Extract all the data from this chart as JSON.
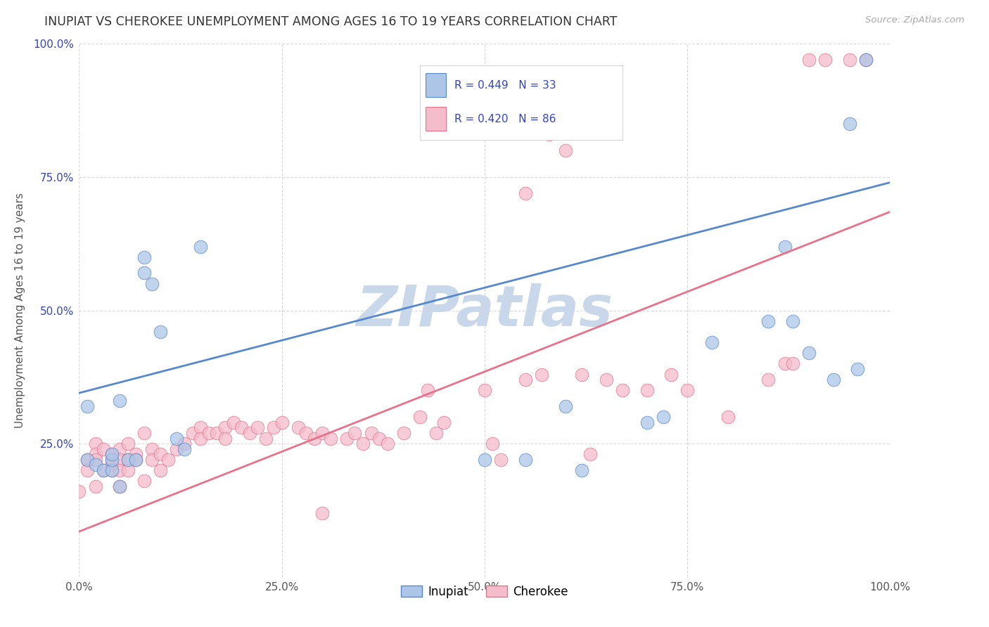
{
  "title": "INUPIAT VS CHEROKEE UNEMPLOYMENT AMONG AGES 16 TO 19 YEARS CORRELATION CHART",
  "source": "Source: ZipAtlas.com",
  "ylabel": "Unemployment Among Ages 16 to 19 years",
  "xlim": [
    0,
    1
  ],
  "ylim": [
    0,
    1
  ],
  "xticks": [
    0.0,
    0.25,
    0.5,
    0.75,
    1.0
  ],
  "yticks": [
    0.25,
    0.5,
    0.75,
    1.0
  ],
  "xtick_labels": [
    "0.0%",
    "25.0%",
    "50.0%",
    "75.0%",
    "100.0%"
  ],
  "ytick_labels": [
    "25.0%",
    "50.0%",
    "75.0%",
    "100.0%"
  ],
  "inupiat_color": "#adc6e8",
  "cherokee_color": "#f5bccb",
  "inupiat_line_color": "#5588cc",
  "cherokee_line_color": "#e8728a",
  "inupiat_R": 0.449,
  "inupiat_N": 33,
  "cherokee_R": 0.42,
  "cherokee_N": 86,
  "legend_color": "#3344bb",
  "watermark": "ZIPatlas",
  "watermark_color": "#c8d8ea",
  "background_color": "#ffffff",
  "grid_color": "#cccccc",
  "inupiat_line_intercept": 0.345,
  "inupiat_line_slope": 0.395,
  "cherokee_line_intercept": 0.085,
  "cherokee_line_slope": 0.6,
  "inupiat_x": [
    0.01,
    0.01,
    0.02,
    0.03,
    0.04,
    0.04,
    0.04,
    0.05,
    0.05,
    0.06,
    0.07,
    0.08,
    0.08,
    0.09,
    0.1,
    0.12,
    0.13,
    0.15,
    0.5,
    0.55,
    0.6,
    0.62,
    0.7,
    0.72,
    0.78,
    0.85,
    0.87,
    0.88,
    0.9,
    0.93,
    0.95,
    0.96,
    0.97
  ],
  "inupiat_y": [
    0.32,
    0.22,
    0.21,
    0.2,
    0.2,
    0.22,
    0.23,
    0.17,
    0.33,
    0.22,
    0.22,
    0.57,
    0.6,
    0.55,
    0.46,
    0.26,
    0.24,
    0.62,
    0.22,
    0.22,
    0.32,
    0.2,
    0.29,
    0.3,
    0.44,
    0.48,
    0.62,
    0.48,
    0.42,
    0.37,
    0.85,
    0.39,
    0.97
  ],
  "cherokee_x": [
    0.0,
    0.01,
    0.01,
    0.02,
    0.02,
    0.02,
    0.02,
    0.03,
    0.03,
    0.04,
    0.04,
    0.04,
    0.04,
    0.05,
    0.05,
    0.05,
    0.05,
    0.06,
    0.06,
    0.06,
    0.07,
    0.07,
    0.08,
    0.08,
    0.09,
    0.09,
    0.1,
    0.1,
    0.11,
    0.12,
    0.13,
    0.14,
    0.15,
    0.15,
    0.16,
    0.17,
    0.18,
    0.18,
    0.19,
    0.2,
    0.21,
    0.22,
    0.23,
    0.24,
    0.25,
    0.27,
    0.28,
    0.29,
    0.3,
    0.31,
    0.33,
    0.34,
    0.35,
    0.36,
    0.37,
    0.38,
    0.4,
    0.42,
    0.43,
    0.44,
    0.45,
    0.5,
    0.51,
    0.52,
    0.55,
    0.57,
    0.58,
    0.6,
    0.62,
    0.63,
    0.65,
    0.67,
    0.7,
    0.73,
    0.75,
    0.8,
    0.85,
    0.87,
    0.9,
    0.92,
    0.95,
    0.97,
    0.3,
    0.43,
    0.55,
    0.88
  ],
  "cherokee_y": [
    0.16,
    0.22,
    0.2,
    0.25,
    0.23,
    0.22,
    0.17,
    0.24,
    0.2,
    0.22,
    0.23,
    0.21,
    0.2,
    0.24,
    0.22,
    0.2,
    0.17,
    0.25,
    0.22,
    0.2,
    0.23,
    0.22,
    0.27,
    0.18,
    0.24,
    0.22,
    0.23,
    0.2,
    0.22,
    0.24,
    0.25,
    0.27,
    0.28,
    0.26,
    0.27,
    0.27,
    0.28,
    0.26,
    0.29,
    0.28,
    0.27,
    0.28,
    0.26,
    0.28,
    0.29,
    0.28,
    0.27,
    0.26,
    0.27,
    0.26,
    0.26,
    0.27,
    0.25,
    0.27,
    0.26,
    0.25,
    0.27,
    0.3,
    0.35,
    0.27,
    0.29,
    0.35,
    0.25,
    0.22,
    0.37,
    0.38,
    0.83,
    0.8,
    0.38,
    0.23,
    0.37,
    0.35,
    0.35,
    0.38,
    0.35,
    0.3,
    0.37,
    0.4,
    0.97,
    0.97,
    0.97,
    0.97,
    0.12,
    0.85,
    0.72,
    0.4
  ]
}
